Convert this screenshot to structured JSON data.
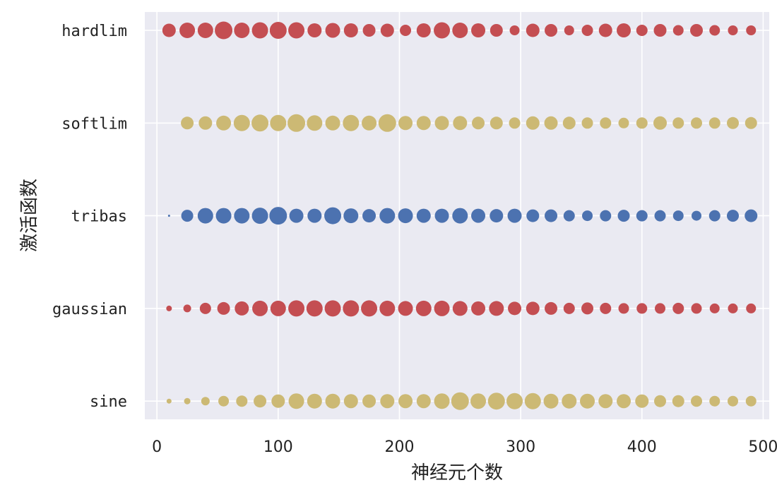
{
  "chart_data": {
    "type": "scatter",
    "title": "",
    "xlabel": "神经元个数",
    "ylabel": "激活函数",
    "xlim": [
      -10,
      505
    ],
    "xticks": [
      0,
      100,
      200,
      300,
      400,
      500
    ],
    "categories": [
      "hardlim",
      "softlim",
      "tribas",
      "gaussian",
      "sine"
    ],
    "grid": true,
    "x": [
      10,
      25,
      40,
      55,
      70,
      85,
      100,
      115,
      130,
      145,
      160,
      175,
      190,
      205,
      220,
      235,
      250,
      265,
      280,
      295,
      310,
      325,
      340,
      355,
      370,
      385,
      400,
      415,
      430,
      445,
      460,
      475,
      490
    ],
    "series": [
      {
        "category": "hardlim",
        "color": "#c44e52",
        "sizes": [
          9.5,
          11,
          11,
          12.5,
          11,
          11.5,
          12,
          11.5,
          10,
          10.5,
          10,
          9,
          9.5,
          8,
          10,
          11.5,
          11,
          10,
          9,
          7,
          9.5,
          9,
          7,
          8,
          9.5,
          10,
          8,
          9,
          7.5,
          9,
          7.5,
          7,
          7
        ]
      },
      {
        "category": "softlim",
        "color": "#ccb974",
        "sizes": [
          0,
          9,
          9.5,
          10.5,
          11.5,
          12,
          11.5,
          12.5,
          11,
          10.5,
          11.5,
          10.5,
          12.5,
          10,
          10,
          10,
          10,
          9,
          9,
          8,
          9.5,
          9.5,
          9,
          8,
          8,
          7.5,
          8,
          9.5,
          8,
          8,
          8,
          8.5,
          8.5
        ]
      },
      {
        "category": "tribas",
        "color": "#4c72b0",
        "sizes": [
          1.5,
          8.5,
          11,
          11,
          11,
          11.5,
          12.5,
          10,
          10,
          12,
          10.5,
          9.5,
          11,
          10.5,
          10,
          10,
          11,
          10,
          9.5,
          10,
          9,
          9,
          8,
          7.5,
          8,
          8.5,
          8,
          8,
          7.5,
          7,
          8,
          8.5,
          9
        ]
      },
      {
        "category": "gaussian",
        "color": "#c44e52",
        "sizes": [
          4,
          5.5,
          8,
          9,
          10,
          11,
          11,
          11.5,
          11.5,
          11.5,
          11.5,
          11.5,
          11,
          10.5,
          11,
          11,
          10.5,
          10,
          10.5,
          9.5,
          9.5,
          9,
          8,
          8.5,
          8,
          7.5,
          7.5,
          7.5,
          8,
          7.5,
          7,
          7,
          7
        ]
      },
      {
        "category": "sine",
        "color": "#ccb974",
        "sizes": [
          3.5,
          4.5,
          6,
          7.5,
          8,
          9,
          9.5,
          11,
          10.5,
          10.5,
          10,
          9.5,
          10,
          10,
          10,
          11,
          12.5,
          11,
          12,
          11.5,
          11.5,
          10.5,
          10.5,
          10.5,
          10,
          10,
          9.5,
          8.5,
          8.5,
          8,
          7.5,
          7.5,
          7.5
        ]
      }
    ]
  }
}
